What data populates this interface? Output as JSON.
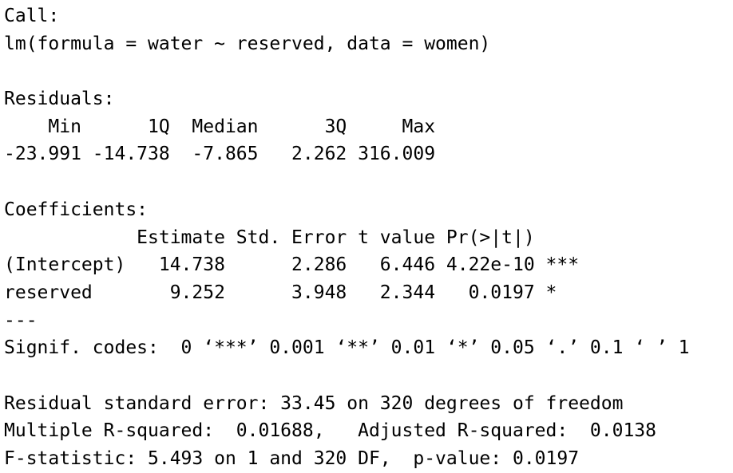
{
  "output": {
    "call_header": "Call:",
    "call_formula": "lm(formula = water ~ reserved, data = women)",
    "blank_1": "",
    "residuals_header": "Residuals:",
    "residuals_labels": "    Min      1Q  Median      3Q     Max ",
    "residuals_values": "-23.991 -14.738  -7.865   2.262 316.009 ",
    "blank_2": "",
    "coefficients_header": "Coefficients:",
    "coef_columns": "            Estimate Std. Error t value Pr(>|t|)    ",
    "coef_intercept": "(Intercept)   14.738      2.286   6.446 4.22e-10 ***",
    "coef_reserved": "reserved       9.252      3.948   2.344   0.0197 *  ",
    "separator": "---",
    "signif_codes": "Signif. codes:  0 ‘***’ 0.001 ‘**’ 0.01 ‘*’ 0.05 ‘.’ 0.1 ‘ ’ 1",
    "blank_3": "",
    "residual_std_error": "Residual standard error: 33.45 on 320 degrees of freedom",
    "r_squared": "Multiple R-squared:  0.01688,\tAdjusted R-squared:  0.0138 ",
    "f_statistic": "F-statistic: 5.493 on 1 and 320 DF,  p-value: 0.0197"
  }
}
